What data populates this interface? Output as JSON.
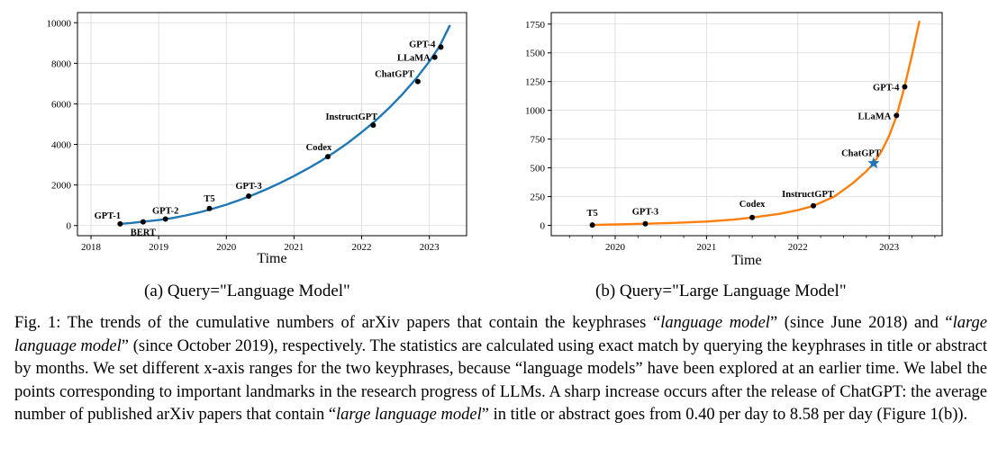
{
  "chart_data": [
    {
      "type": "line",
      "xlabel": "Time",
      "ylabel": "",
      "xlim": [
        2017.8,
        2023.55
      ],
      "ylim": [
        -500,
        10500
      ],
      "xticks": [
        2018,
        2019,
        2020,
        2021,
        2022,
        2023
      ],
      "yticks": [
        0,
        2000,
        4000,
        6000,
        8000,
        10000
      ],
      "grid": true,
      "color": "#1f77b4",
      "series": [
        {
          "x": [
            2018.42,
            2018.6,
            2018.8,
            2019.0,
            2019.2,
            2019.4,
            2019.6,
            2019.8,
            2020.0,
            2020.2,
            2020.4,
            2020.6,
            2020.8,
            2021.0,
            2021.2,
            2021.4,
            2021.6,
            2021.8,
            2022.0,
            2022.2,
            2022.4,
            2022.6,
            2022.8,
            2023.0,
            2023.15,
            2023.3
          ],
          "y": [
            80,
            130,
            200,
            270,
            370,
            500,
            650,
            830,
            1030,
            1260,
            1520,
            1800,
            2110,
            2440,
            2800,
            3190,
            3620,
            4080,
            4600,
            5160,
            5780,
            6470,
            7230,
            8090,
            8830,
            9850
          ]
        }
      ],
      "points": [
        {
          "label": "GPT-1",
          "x": 2018.43,
          "y": 80
        },
        {
          "label": "BERT",
          "x": 2018.77,
          "y": 180
        },
        {
          "label": "GPT-2",
          "x": 2019.1,
          "y": 320
        },
        {
          "label": "T5",
          "x": 2019.75,
          "y": 840
        },
        {
          "label": "GPT-3",
          "x": 2020.33,
          "y": 1450
        },
        {
          "label": "Codex",
          "x": 2021.5,
          "y": 3400
        },
        {
          "label": "InstructGPT",
          "x": 2022.17,
          "y": 4950
        },
        {
          "label": "ChatGPT",
          "x": 2022.83,
          "y": 7100
        },
        {
          "label": "LLaMA",
          "x": 2023.08,
          "y": 8300
        },
        {
          "label": "GPT-4",
          "x": 2023.17,
          "y": 8800
        }
      ],
      "caption": "(a) Query=\"Language Model\""
    },
    {
      "type": "line",
      "xlabel": "Time",
      "ylabel": "",
      "xlim": [
        2019.3,
        2023.58
      ],
      "ylim": [
        -90,
        1850
      ],
      "xticks": [
        2020,
        2021,
        2022,
        2023
      ],
      "yticks": [
        0,
        250,
        500,
        750,
        1000,
        1250,
        1500,
        1750
      ],
      "grid": true,
      "color": "#ff7f0e",
      "series": [
        {
          "x": [
            2019.75,
            2020.0,
            2020.33,
            2020.6,
            2021.0,
            2021.3,
            2021.5,
            2021.8,
            2022.0,
            2022.17,
            2022.4,
            2022.6,
            2022.75,
            2022.83,
            2022.92,
            2023.0,
            2023.08,
            2023.17,
            2023.25,
            2023.33
          ],
          "y": [
            3,
            8,
            14,
            20,
            33,
            50,
            68,
            100,
            132,
            170,
            250,
            365,
            470,
            540,
            650,
            780,
            950,
            1210,
            1480,
            1770
          ]
        }
      ],
      "points": [
        {
          "label": "T5",
          "x": 2019.75,
          "y": 3,
          "marker": "dot"
        },
        {
          "label": "GPT-3",
          "x": 2020.33,
          "y": 14,
          "marker": "dot"
        },
        {
          "label": "Codex",
          "x": 2021.5,
          "y": 68,
          "marker": "dot"
        },
        {
          "label": "InstructGPT",
          "x": 2022.17,
          "y": 170,
          "marker": "dot"
        },
        {
          "label": "ChatGPT",
          "x": 2022.83,
          "y": 540,
          "marker": "star"
        },
        {
          "label": "LLaMA",
          "x": 2023.08,
          "y": 955,
          "marker": "dot"
        },
        {
          "label": "GPT-4",
          "x": 2023.17,
          "y": 1205,
          "marker": "dot"
        }
      ],
      "caption": "(b) Query=\"Large Language Model\""
    }
  ],
  "caption": {
    "part1": "Fig. 1: The trends of the cumulative numbers of arXiv papers that contain the keyphrases “",
    "term1": "language model",
    "part2": "” (since June 2018) and “",
    "term2": "large language model",
    "part3": "” (since October 2019), respectively. The statistics are calculated using exact match by querying the keyphrases in title or abstract by months. We set different x-axis ranges for the two keyphrases, because “language models” have been explored at an earlier time. We label the points corresponding to important landmarks in the research progress of LLMs. A sharp increase occurs after the release of ChatGPT: the average number of published arXiv papers that contain “",
    "term3": "large language model",
    "part4": "” in title or abstract goes from 0.40 per day to 8.58 per day (Figure 1(b))."
  }
}
